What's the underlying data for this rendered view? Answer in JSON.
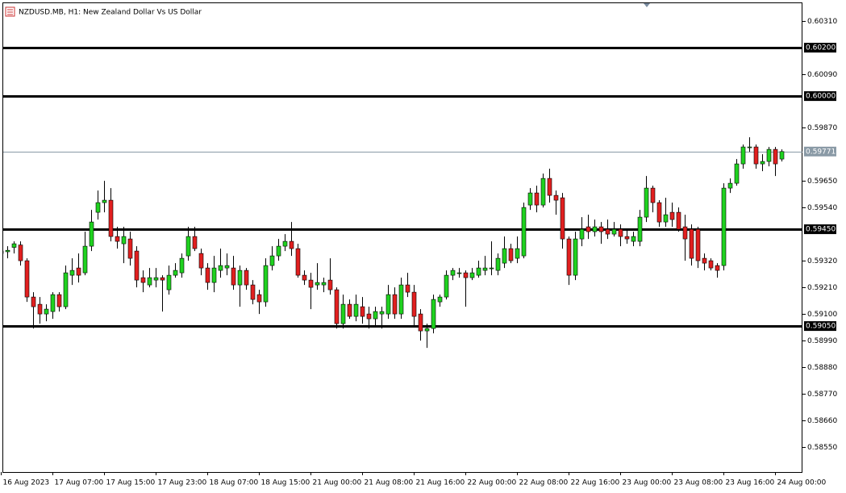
{
  "chart_data": {
    "type": "candlestick",
    "title": "NZDUSD.MB, H1:  New Zealand Dollar Vs US Dollar",
    "categories": [
      "16 Aug 2023",
      null,
      null,
      null,
      null,
      null,
      null,
      null,
      "17 Aug 07:00",
      null,
      null,
      null,
      null,
      null,
      null,
      null,
      "17 Aug 15:00",
      null,
      null,
      null,
      null,
      null,
      null,
      null,
      "17 Aug 23:00",
      null,
      null,
      null,
      null,
      null,
      null,
      null,
      "18 Aug 07:00",
      null,
      null,
      null,
      null,
      null,
      null,
      null,
      "18 Aug 15:00",
      null,
      null,
      null,
      null,
      null,
      null,
      null,
      "21 Aug 00:00",
      null,
      null,
      null,
      null,
      null,
      null,
      null,
      "21 Aug 08:00",
      null,
      null,
      null,
      null,
      null,
      null,
      null,
      "21 Aug 16:00",
      null,
      null,
      null,
      null,
      null,
      null,
      null,
      "22 Aug 00:00",
      null,
      null,
      null,
      null,
      null,
      null,
      null,
      "22 Aug 08:00",
      null,
      null,
      null,
      null,
      null,
      null,
      null,
      "22 Aug 16:00",
      null,
      null,
      null,
      null,
      null,
      null,
      null,
      "23 Aug 00:00",
      null,
      null,
      null,
      null,
      null,
      null,
      null,
      "23 Aug 08:00",
      null,
      null,
      null,
      null,
      null,
      null,
      null,
      "23 Aug 16:00",
      null,
      null,
      null,
      null,
      null,
      null,
      null,
      "24 Aug 00:00",
      null
    ],
    "open": [
      0.5935,
      0.59357,
      0.59375,
      0.59385,
      0.5932,
      0.5917,
      0.5914,
      0.591,
      0.5911,
      0.5918,
      0.5913,
      0.5926,
      0.5929,
      0.5927,
      0.5938,
      0.5952,
      0.5956,
      0.5957,
      0.5942,
      0.5939,
      0.5941,
      0.5936,
      0.5925,
      0.5922,
      0.5924,
      0.5925,
      0.592,
      0.5926,
      0.5927,
      0.5934,
      0.5942,
      0.5935,
      0.5929,
      0.5923,
      0.5928,
      0.5929,
      0.5929,
      0.5922,
      0.5928,
      0.5922,
      0.5918,
      0.5915,
      0.593,
      0.5934,
      0.5938,
      0.594,
      0.5937,
      0.5926,
      0.5924,
      0.5922,
      0.5922,
      0.5924,
      0.592,
      0.5906,
      0.5914,
      0.5909,
      0.5913,
      0.591,
      0.5908,
      0.591,
      0.591,
      0.5918,
      0.591,
      0.5922,
      0.5919,
      0.591,
      0.5903,
      0.5904,
      0.5915,
      0.5917,
      0.5926,
      0.5927,
      0.5927,
      0.5925,
      0.5926,
      0.5928,
      0.5929,
      0.5928,
      0.5931,
      0.5937,
      0.5933,
      0.5934,
      0.5955,
      0.596,
      0.5955,
      0.5966,
      0.5959,
      0.5958,
      0.5941,
      0.5926,
      0.5941,
      0.5946,
      0.5944,
      0.5946,
      0.5945,
      0.5943,
      0.5945,
      0.5942,
      0.594,
      0.594,
      0.595,
      0.5962,
      0.5956,
      0.5948,
      0.5952,
      0.5952,
      0.5946,
      0.5945,
      0.5945,
      0.5933,
      0.5932,
      0.593,
      0.593,
      0.5962,
      0.5964,
      0.5972,
      0.5979,
      0.5979,
      0.5972,
      0.5973,
      0.5978,
      0.5974
    ],
    "high": [
      0.5937,
      0.5938,
      0.594,
      0.594,
      0.5933,
      0.5919,
      0.5917,
      0.5914,
      0.5919,
      0.5919,
      0.593,
      0.5933,
      0.5935,
      0.5944,
      0.5953,
      0.5961,
      0.5965,
      0.5962,
      0.5946,
      0.5946,
      0.5944,
      0.5938,
      0.5928,
      0.5929,
      0.5929,
      0.5926,
      0.593,
      0.5931,
      0.5935,
      0.5946,
      0.5946,
      0.5937,
      0.5931,
      0.5934,
      0.5937,
      0.5935,
      0.5934,
      0.593,
      0.5929,
      0.5924,
      0.592,
      0.5933,
      0.5938,
      0.5941,
      0.5943,
      0.5948,
      0.5939,
      0.5928,
      0.5927,
      0.5931,
      0.5925,
      0.5933,
      0.5921,
      0.5918,
      0.5916,
      0.5918,
      0.5917,
      0.5913,
      0.5913,
      0.5913,
      0.5922,
      0.5921,
      0.5925,
      0.5927,
      0.5922,
      0.5912,
      0.5906,
      0.5918,
      0.5918,
      0.5928,
      0.5929,
      0.5929,
      0.5928,
      0.5929,
      0.5932,
      0.5934,
      0.594,
      0.5935,
      0.5942,
      0.5939,
      0.5942,
      0.5956,
      0.5962,
      0.5963,
      0.5968,
      0.597,
      0.5961,
      0.596,
      0.5942,
      0.5944,
      0.595,
      0.5951,
      0.5949,
      0.5948,
      0.5949,
      0.5948,
      0.5947,
      0.5945,
      0.5944,
      0.5953,
      0.5967,
      0.5963,
      0.5957,
      0.5958,
      0.5956,
      0.5954,
      0.5951,
      0.5947,
      0.5946,
      0.5935,
      0.5933,
      0.5931,
      0.5964,
      0.5966,
      0.5974,
      0.598,
      0.5983,
      0.598,
      0.5976,
      0.5979,
      0.5979,
      0.5978
    ],
    "low": [
      0.5933,
      0.5933,
      0.5935,
      0.593,
      0.5915,
      0.5904,
      0.5906,
      0.5907,
      0.5908,
      0.5911,
      0.5912,
      0.5922,
      0.5923,
      0.5926,
      0.5936,
      0.5949,
      0.5952,
      0.594,
      0.5937,
      0.5931,
      0.593,
      0.5921,
      0.5919,
      0.5921,
      0.5921,
      0.5911,
      0.5918,
      0.5925,
      0.5925,
      0.5932,
      0.5936,
      0.5926,
      0.592,
      0.5919,
      0.5925,
      0.5926,
      0.592,
      0.5913,
      0.592,
      0.5914,
      0.591,
      0.5913,
      0.5928,
      0.5932,
      0.5936,
      0.5934,
      0.5925,
      0.5922,
      0.5912,
      0.592,
      0.5919,
      0.5918,
      0.5904,
      0.5904,
      0.5908,
      0.5907,
      0.5906,
      0.5904,
      0.5905,
      0.5904,
      0.5908,
      0.5908,
      0.5908,
      0.5917,
      0.5905,
      0.5899,
      0.5896,
      0.5902,
      0.5913,
      0.5916,
      0.5924,
      0.5925,
      0.5913,
      0.5924,
      0.5925,
      0.5926,
      0.5926,
      0.5926,
      0.5929,
      0.5931,
      0.5931,
      0.5933,
      0.5953,
      0.5952,
      0.5954,
      0.5956,
      0.5951,
      0.5937,
      0.5922,
      0.5924,
      0.5938,
      0.5941,
      0.5942,
      0.5939,
      0.5941,
      0.5942,
      0.5938,
      0.5939,
      0.5938,
      0.5938,
      0.5948,
      0.5952,
      0.5946,
      0.5946,
      0.5946,
      0.5944,
      0.5932,
      0.593,
      0.5929,
      0.5928,
      0.5928,
      0.5925,
      0.5928,
      0.596,
      0.5963,
      0.597,
      0.5977,
      0.597,
      0.5969,
      0.5971,
      0.5967,
      0.5973
    ],
    "close": [
      0.5936,
      0.59363,
      0.5939,
      0.5932,
      0.5917,
      0.5913,
      0.591,
      0.5912,
      0.5918,
      0.5913,
      0.5927,
      0.5928,
      0.5926,
      0.5938,
      0.5948,
      0.5956,
      0.5957,
      0.5942,
      0.594,
      0.5942,
      0.5933,
      0.5924,
      0.5923,
      0.5925,
      0.5925,
      0.5924,
      0.5926,
      0.5928,
      0.5933,
      0.5942,
      0.5937,
      0.5929,
      0.5923,
      0.5929,
      0.593,
      0.593,
      0.5922,
      0.5928,
      0.5922,
      0.5916,
      0.5915,
      0.593,
      0.5934,
      0.5938,
      0.594,
      0.5937,
      0.5926,
      0.5924,
      0.5921,
      0.5923,
      0.5923,
      0.592,
      0.5906,
      0.5914,
      0.5909,
      0.5914,
      0.5909,
      0.5908,
      0.5911,
      0.5911,
      0.5918,
      0.591,
      0.5922,
      0.5919,
      0.5909,
      0.5903,
      0.5904,
      0.5916,
      0.5917,
      0.5926,
      0.5928,
      0.5927,
      0.5925,
      0.5927,
      0.5929,
      0.5929,
      0.5929,
      0.5933,
      0.5937,
      0.5932,
      0.5937,
      0.5954,
      0.596,
      0.5955,
      0.5966,
      0.5959,
      0.5957,
      0.5941,
      0.5926,
      0.5941,
      0.5945,
      0.5944,
      0.5946,
      0.5944,
      0.5943,
      0.5945,
      0.5942,
      0.5941,
      0.5942,
      0.595,
      0.5962,
      0.5956,
      0.5948,
      0.5951,
      0.5949,
      0.5945,
      0.5941,
      0.5933,
      0.5932,
      0.5931,
      0.5929,
      0.5928,
      0.5962,
      0.5964,
      0.5972,
      0.5979,
      0.5979,
      0.5972,
      0.5973,
      0.5978,
      0.5972,
      0.59771
    ],
    "up_color": "#1fd21f",
    "down_color": "#e11f1f",
    "ylim": [
      0.58447,
      0.60387
    ],
    "yticks": [
      {
        "value": 0.6031,
        "label": "0.60310"
      },
      {
        "value": 0.6009,
        "label": "0.60090"
      },
      {
        "value": 0.5987,
        "label": "0.59870"
      },
      {
        "value": 0.5965,
        "label": "0.59650"
      },
      {
        "value": 0.5954,
        "label": "0.59540"
      },
      {
        "value": 0.5932,
        "label": "0.59320"
      },
      {
        "value": 0.5921,
        "label": "0.59210"
      },
      {
        "value": 0.591,
        "label": "0.59100"
      },
      {
        "value": 0.5899,
        "label": "0.58990"
      },
      {
        "value": 0.5888,
        "label": "0.58880"
      },
      {
        "value": 0.5877,
        "label": "0.58770"
      },
      {
        "value": 0.5866,
        "label": "0.58660"
      },
      {
        "value": 0.5855,
        "label": "0.58550"
      }
    ],
    "hlines": [
      {
        "value": 0.602,
        "label": "0.60200"
      },
      {
        "value": 0.6,
        "label": "0.60000"
      },
      {
        "value": 0.5945,
        "label": "0.59450"
      },
      {
        "value": 0.5905,
        "label": "0.59050"
      }
    ],
    "price_line": {
      "value": 0.59771,
      "label": "0.59771"
    }
  }
}
